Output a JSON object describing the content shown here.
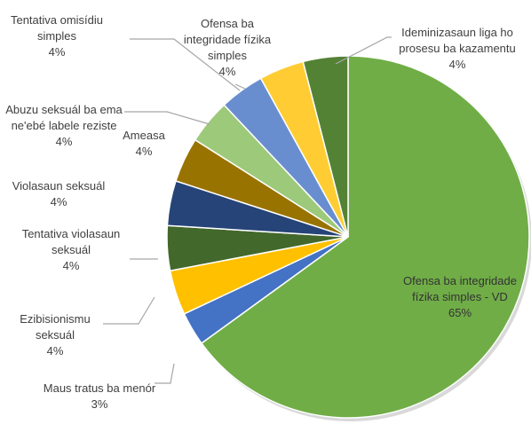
{
  "chart_data": {
    "type": "pie",
    "categories": [
      "Ofensa ba integridade fízika simples - VD",
      "Maus tratus ba menór",
      "Ezibisionismu seksuál",
      "Tentativa violasaun seksuál",
      "Violasaun seksuál",
      "Ameasa",
      "Abuzu seksuál ba ema ne'ebé labele reziste",
      "Tentativa omisídiu simples",
      "Ofensa ba integridade fízika simples",
      "Ideminizasaun liga ho prosesu ba kazamentu"
    ],
    "values": [
      65,
      3,
      4,
      4,
      4,
      4,
      4,
      4,
      4,
      4
    ],
    "value_labels": [
      "65%",
      "3%",
      "4%",
      "4%",
      "4%",
      "4%",
      "4%",
      "4%",
      "4%",
      "4%"
    ],
    "colors": [
      "#70ad47",
      "#4472c4",
      "#ffc000",
      "#43682b",
      "#264478",
      "#997300",
      "#9dc97a",
      "#698ed0",
      "#ffcd33",
      "#548235"
    ]
  }
}
